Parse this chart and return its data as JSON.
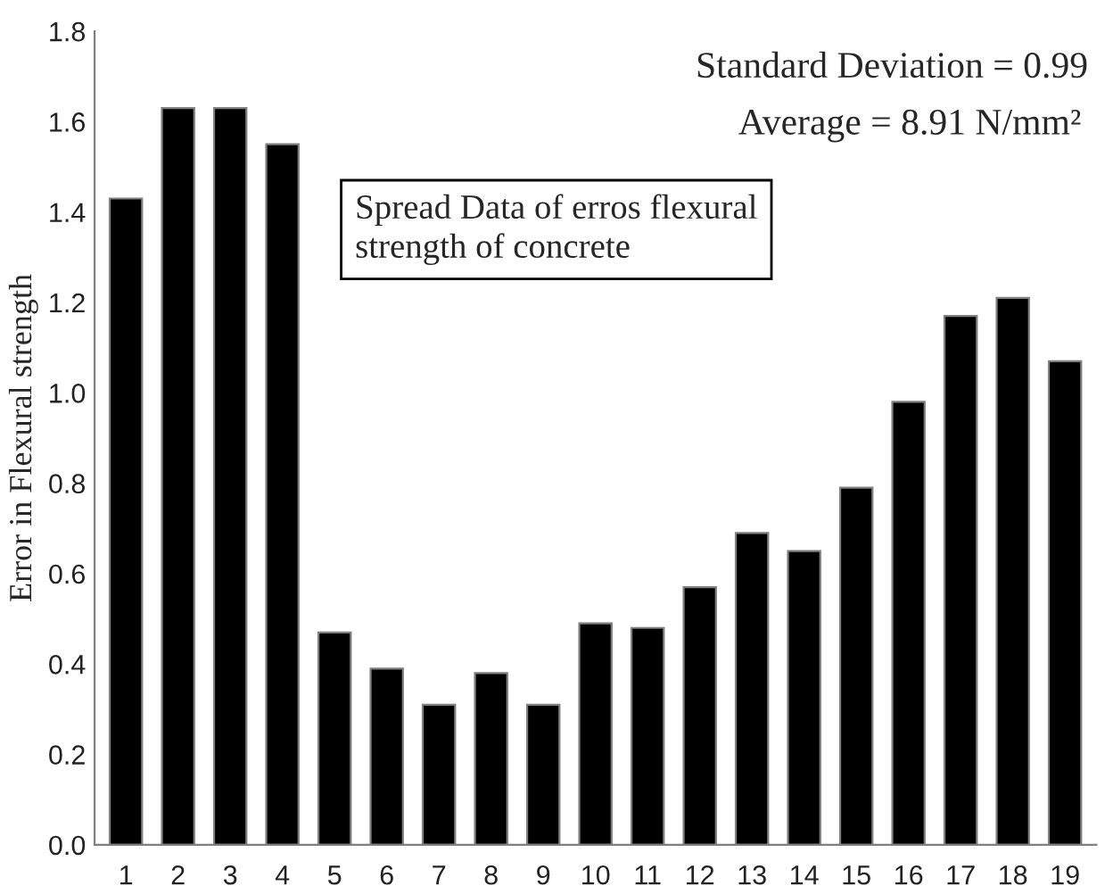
{
  "chart_data": {
    "type": "bar",
    "ylabel": "Error in Flexural strength",
    "categories": [
      "1",
      "2",
      "3",
      "4",
      "5",
      "6",
      "7",
      "8",
      "9",
      "10",
      "11",
      "12",
      "13",
      "14",
      "15",
      "16",
      "17",
      "18",
      "19"
    ],
    "values": [
      1.43,
      1.63,
      1.63,
      1.55,
      0.47,
      0.39,
      0.31,
      0.38,
      0.31,
      0.49,
      0.48,
      0.57,
      0.69,
      0.65,
      0.79,
      0.98,
      1.17,
      1.21,
      1.07
    ],
    "color": "#000000",
    "ylim": [
      0,
      1.8
    ],
    "yticks": [
      {
        "value": 0,
        "label": "0.0"
      },
      {
        "value": 0.2,
        "label": "0.2"
      },
      {
        "value": 0.4,
        "label": "0.4"
      },
      {
        "value": 0.6,
        "label": "0.6"
      },
      {
        "value": 0.8,
        "label": "0.8"
      },
      {
        "value": 1.0,
        "label": "1.0"
      },
      {
        "value": 1.2,
        "label": "1.2"
      },
      {
        "value": 1.4,
        "label": "1.4"
      },
      {
        "value": 1.6,
        "label": "1.6"
      },
      {
        "value": 1.8,
        "label": "1.8"
      }
    ],
    "grid": false,
    "annotations": [
      "Standard Deviation = 0.99",
      "Average = 8.91 N/mm²",
      "Spread Data of erros flexural\nstrength of concrete"
    ]
  }
}
